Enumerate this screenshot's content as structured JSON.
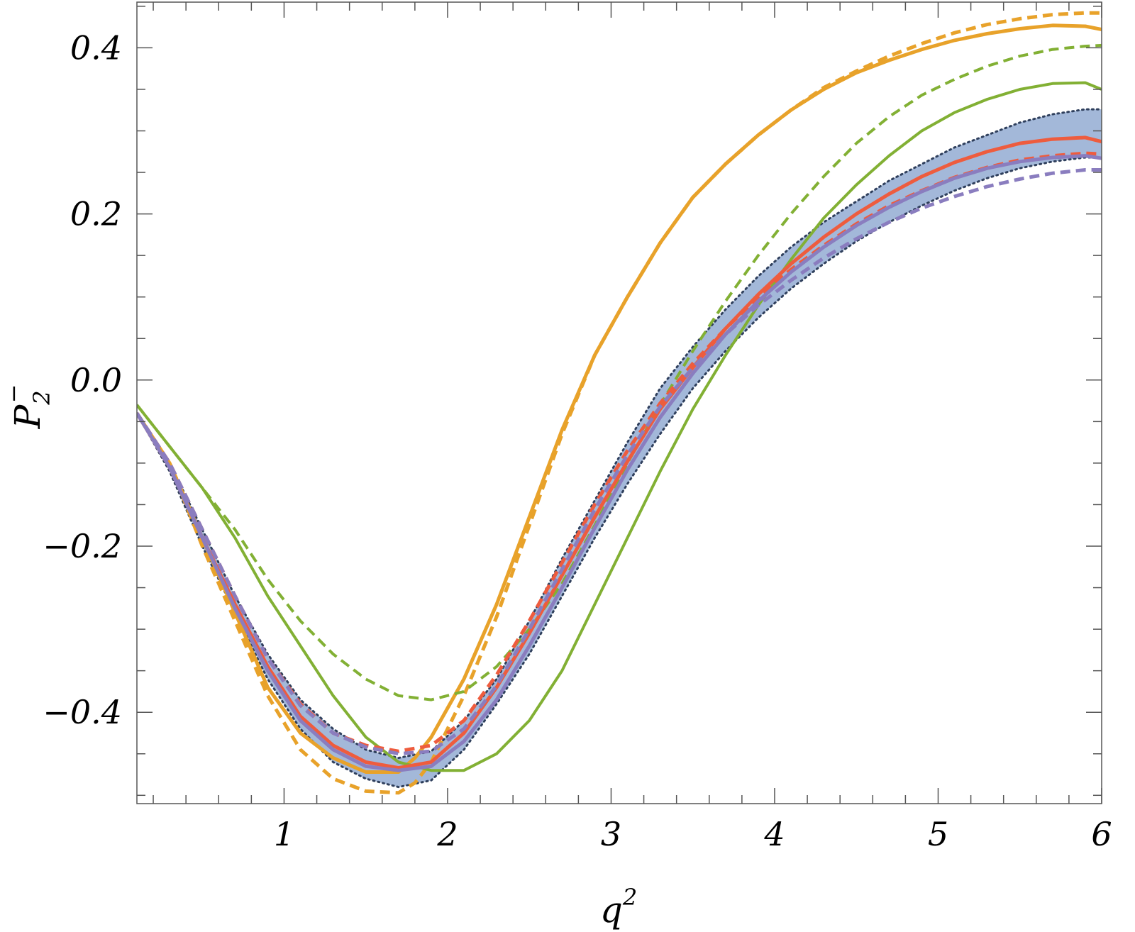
{
  "chart_data": {
    "type": "line",
    "xlabel": "q",
    "xlabel_superscript": "2",
    "ylabel": "P",
    "ylabel_subscript": "2",
    "ylabel_superscript": "−",
    "xlim": [
      0.1,
      6.0
    ],
    "ylim": [
      -0.51,
      0.455
    ],
    "x_ticks": [
      1,
      2,
      3,
      4,
      5,
      6
    ],
    "x_tick_labels": [
      "1",
      "2",
      "3",
      "4",
      "5",
      "6"
    ],
    "y_ticks": [
      -0.4,
      -0.2,
      0.0,
      0.2,
      0.4
    ],
    "y_tick_labels": [
      "−0.4",
      "−0.2",
      "0.0",
      "0.2",
      "0.4"
    ],
    "grid": false,
    "band": {
      "color": "#a3b8d9",
      "edge_color": "#2f3f5c",
      "x": [
        0.1,
        0.3,
        0.5,
        0.7,
        0.9,
        1.1,
        1.3,
        1.5,
        1.7,
        1.9,
        2.1,
        2.3,
        2.5,
        2.7,
        2.9,
        3.1,
        3.3,
        3.5,
        3.7,
        3.9,
        4.1,
        4.3,
        4.5,
        4.7,
        4.9,
        5.1,
        5.3,
        5.5,
        5.7,
        5.9,
        6.0
      ],
      "upper": [
        -0.04,
        -0.1,
        -0.18,
        -0.26,
        -0.33,
        -0.385,
        -0.42,
        -0.445,
        -0.455,
        -0.447,
        -0.41,
        -0.36,
        -0.29,
        -0.215,
        -0.145,
        -0.075,
        -0.01,
        0.04,
        0.085,
        0.125,
        0.16,
        0.19,
        0.215,
        0.24,
        0.26,
        0.28,
        0.295,
        0.31,
        0.32,
        0.326,
        0.326
      ],
      "lower": [
        -0.04,
        -0.11,
        -0.2,
        -0.28,
        -0.36,
        -0.42,
        -0.46,
        -0.48,
        -0.49,
        -0.482,
        -0.445,
        -0.39,
        -0.33,
        -0.26,
        -0.19,
        -0.125,
        -0.065,
        -0.01,
        0.035,
        0.075,
        0.11,
        0.14,
        0.167,
        0.19,
        0.21,
        0.228,
        0.243,
        0.255,
        0.263,
        0.268,
        0.268
      ]
    },
    "series": [
      {
        "color": "#e8a22a",
        "dash": "solid",
        "width": 5,
        "x": [
          0.1,
          0.3,
          0.5,
          0.7,
          0.9,
          1.1,
          1.3,
          1.5,
          1.7,
          1.8,
          1.9,
          2.1,
          2.3,
          2.5,
          2.7,
          2.9,
          3.1,
          3.3,
          3.5,
          3.7,
          3.9,
          4.1,
          4.3,
          4.5,
          4.7,
          4.9,
          5.1,
          5.3,
          5.5,
          5.7,
          5.9,
          6.0
        ],
        "values": [
          -0.04,
          -0.1,
          -0.19,
          -0.28,
          -0.37,
          -0.425,
          -0.455,
          -0.472,
          -0.472,
          -0.455,
          -0.43,
          -0.36,
          -0.27,
          -0.165,
          -0.06,
          0.03,
          0.1,
          0.165,
          0.22,
          0.26,
          0.295,
          0.325,
          0.35,
          0.37,
          0.385,
          0.398,
          0.409,
          0.417,
          0.423,
          0.427,
          0.426,
          0.422
        ]
      },
      {
        "color": "#e8a22a",
        "dash": "dashed",
        "width": 5,
        "x": [
          0.1,
          0.3,
          0.5,
          0.7,
          0.9,
          1.1,
          1.3,
          1.5,
          1.7,
          1.8,
          1.9,
          2.1,
          2.3,
          2.5,
          2.7,
          2.9,
          3.1,
          3.3,
          3.5,
          3.7,
          3.9,
          4.1,
          4.3,
          4.5,
          4.7,
          4.9,
          5.1,
          5.3,
          5.5,
          5.7,
          5.9,
          6.0
        ],
        "values": [
          -0.04,
          -0.1,
          -0.2,
          -0.29,
          -0.38,
          -0.445,
          -0.48,
          -0.495,
          -0.497,
          -0.485,
          -0.46,
          -0.38,
          -0.285,
          -0.175,
          -0.065,
          0.03,
          0.1,
          0.165,
          0.22,
          0.26,
          0.295,
          0.325,
          0.352,
          0.372,
          0.39,
          0.405,
          0.418,
          0.428,
          0.435,
          0.44,
          0.442,
          0.442
        ]
      },
      {
        "color": "#82b034",
        "dash": "solid",
        "width": 4,
        "x": [
          0.1,
          0.3,
          0.5,
          0.7,
          0.9,
          1.1,
          1.3,
          1.5,
          1.7,
          1.9,
          2.1,
          2.3,
          2.5,
          2.7,
          2.9,
          3.1,
          3.3,
          3.5,
          3.7,
          3.9,
          4.1,
          4.3,
          4.5,
          4.7,
          4.9,
          5.1,
          5.3,
          5.5,
          5.7,
          5.9,
          6.0
        ],
        "values": [
          -0.03,
          -0.08,
          -0.13,
          -0.19,
          -0.26,
          -0.32,
          -0.38,
          -0.43,
          -0.46,
          -0.47,
          -0.47,
          -0.45,
          -0.41,
          -0.35,
          -0.27,
          -0.19,
          -0.11,
          -0.035,
          0.03,
          0.09,
          0.145,
          0.195,
          0.235,
          0.27,
          0.3,
          0.322,
          0.338,
          0.35,
          0.357,
          0.358,
          0.35
        ]
      },
      {
        "color": "#82b034",
        "dash": "dashed",
        "width": 4,
        "x": [
          0.1,
          0.3,
          0.5,
          0.7,
          0.9,
          1.1,
          1.3,
          1.5,
          1.7,
          1.9,
          2.1,
          2.3,
          2.5,
          2.7,
          2.9,
          3.1,
          3.3,
          3.5,
          3.7,
          3.9,
          4.1,
          4.3,
          4.5,
          4.7,
          4.9,
          5.1,
          5.3,
          5.5,
          5.7,
          5.9,
          6.0
        ],
        "values": [
          -0.03,
          -0.08,
          -0.13,
          -0.18,
          -0.24,
          -0.29,
          -0.33,
          -0.36,
          -0.38,
          -0.385,
          -0.375,
          -0.345,
          -0.3,
          -0.245,
          -0.175,
          -0.1,
          -0.03,
          0.035,
          0.095,
          0.15,
          0.2,
          0.245,
          0.285,
          0.317,
          0.343,
          0.362,
          0.378,
          0.39,
          0.398,
          0.402,
          0.403
        ]
      },
      {
        "color": "#ee5c3e",
        "dash": "solid",
        "width": 5,
        "x": [
          0.1,
          0.3,
          0.5,
          0.7,
          0.9,
          1.1,
          1.3,
          1.5,
          1.7,
          1.9,
          2.1,
          2.3,
          2.5,
          2.7,
          2.9,
          3.1,
          3.3,
          3.5,
          3.7,
          3.9,
          4.1,
          4.3,
          4.5,
          4.7,
          4.9,
          5.1,
          5.3,
          5.5,
          5.7,
          5.9,
          6.0
        ],
        "values": [
          -0.04,
          -0.105,
          -0.19,
          -0.27,
          -0.345,
          -0.405,
          -0.44,
          -0.46,
          -0.467,
          -0.46,
          -0.425,
          -0.37,
          -0.305,
          -0.235,
          -0.165,
          -0.098,
          -0.035,
          0.015,
          0.062,
          0.103,
          0.14,
          0.172,
          0.2,
          0.224,
          0.245,
          0.262,
          0.275,
          0.285,
          0.29,
          0.292,
          0.287
        ]
      },
      {
        "color": "#ee5c3e",
        "dash": "dashed",
        "width": 5,
        "x": [
          0.1,
          0.3,
          0.5,
          0.7,
          0.9,
          1.1,
          1.3,
          1.5,
          1.7,
          1.9,
          2.1,
          2.3,
          2.5,
          2.7,
          2.9,
          3.1,
          3.3,
          3.5,
          3.7,
          3.9,
          4.1,
          4.3,
          4.5,
          4.7,
          4.9,
          5.1,
          5.3,
          5.5,
          5.7,
          5.9,
          6.0
        ],
        "values": [
          -0.04,
          -0.1,
          -0.18,
          -0.26,
          -0.335,
          -0.39,
          -0.425,
          -0.44,
          -0.447,
          -0.44,
          -0.41,
          -0.355,
          -0.29,
          -0.22,
          -0.15,
          -0.085,
          -0.028,
          0.02,
          0.062,
          0.1,
          0.133,
          0.162,
          0.188,
          0.21,
          0.228,
          0.244,
          0.256,
          0.265,
          0.27,
          0.273,
          0.272
        ]
      },
      {
        "color": "#8a7dbf",
        "dash": "solid",
        "width": 5,
        "x": [
          0.1,
          0.3,
          0.5,
          0.7,
          0.9,
          1.1,
          1.3,
          1.5,
          1.7,
          1.9,
          2.1,
          2.3,
          2.5,
          2.7,
          2.9,
          3.1,
          3.3,
          3.5,
          3.7,
          3.9,
          4.1,
          4.3,
          4.5,
          4.7,
          4.9,
          5.1,
          5.3,
          5.5,
          5.7,
          5.9,
          6.0
        ],
        "values": [
          -0.04,
          -0.105,
          -0.19,
          -0.275,
          -0.35,
          -0.41,
          -0.445,
          -0.465,
          -0.47,
          -0.465,
          -0.435,
          -0.385,
          -0.32,
          -0.25,
          -0.178,
          -0.108,
          -0.045,
          0.008,
          0.055,
          0.095,
          0.13,
          0.16,
          0.186,
          0.208,
          0.227,
          0.243,
          0.255,
          0.263,
          0.268,
          0.27,
          0.267
        ]
      },
      {
        "color": "#8a7dbf",
        "dash": "dashed",
        "width": 5,
        "x": [
          0.1,
          0.3,
          0.5,
          0.7,
          0.9,
          1.1,
          1.3,
          1.5,
          1.7,
          1.9,
          2.1,
          2.3,
          2.5,
          2.7,
          2.9,
          3.1,
          3.3,
          3.5,
          3.7,
          3.9,
          4.1,
          4.3,
          4.5,
          4.7,
          4.9,
          5.1,
          5.3,
          5.5,
          5.7,
          5.9,
          6.0
        ],
        "values": [
          -0.04,
          -0.1,
          -0.18,
          -0.26,
          -0.335,
          -0.392,
          -0.425,
          -0.442,
          -0.45,
          -0.447,
          -0.42,
          -0.368,
          -0.3,
          -0.228,
          -0.156,
          -0.09,
          -0.032,
          0.015,
          0.055,
          0.09,
          0.12,
          0.147,
          0.17,
          0.19,
          0.207,
          0.221,
          0.233,
          0.242,
          0.249,
          0.253,
          0.253
        ]
      }
    ]
  }
}
